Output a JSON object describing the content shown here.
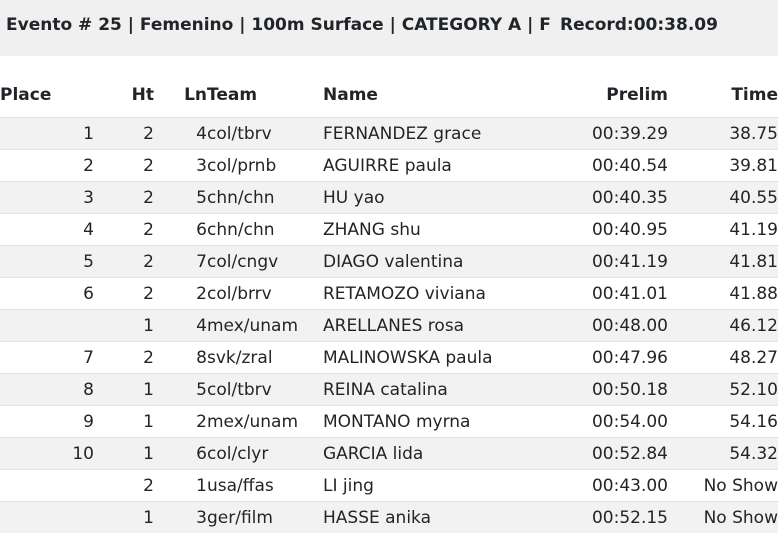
{
  "header": {
    "title": "Evento # 25 | Femenino | 100m Surface | CATEGORY A | F",
    "record": "Record:00:38.09"
  },
  "table": {
    "columns": {
      "place": "Place",
      "ht": "Ht",
      "ln": "Ln",
      "team": "Team",
      "name": "Name",
      "prelim": "Prelim",
      "time": "Time"
    },
    "rows": [
      {
        "place": "1",
        "ht": "2",
        "ln": "4",
        "team": "col/tbrv",
        "name": "FERNANDEZ grace",
        "prelim": "00:39.29",
        "time": "38.75"
      },
      {
        "place": "2",
        "ht": "2",
        "ln": "3",
        "team": "col/prnb",
        "name": "AGUIRRE paula",
        "prelim": "00:40.54",
        "time": "39.81"
      },
      {
        "place": "3",
        "ht": "2",
        "ln": "5",
        "team": "chn/chn",
        "name": "HU yao",
        "prelim": "00:40.35",
        "time": "40.55"
      },
      {
        "place": "4",
        "ht": "2",
        "ln": "6",
        "team": "chn/chn",
        "name": "ZHANG shu",
        "prelim": "00:40.95",
        "time": "41.19"
      },
      {
        "place": "5",
        "ht": "2",
        "ln": "7",
        "team": "col/cngv",
        "name": "DIAGO valentina",
        "prelim": "00:41.19",
        "time": "41.81"
      },
      {
        "place": "6",
        "ht": "2",
        "ln": "2",
        "team": "col/brrv",
        "name": "RETAMOZO viviana",
        "prelim": "00:41.01",
        "time": "41.88"
      },
      {
        "place": "",
        "ht": "1",
        "ln": "4",
        "team": "mex/unam",
        "name": "ARELLANES rosa",
        "prelim": "00:48.00",
        "time": "46.12"
      },
      {
        "place": "7",
        "ht": "2",
        "ln": "8",
        "team": "svk/zral",
        "name": "MALINOWSKA paula",
        "prelim": "00:47.96",
        "time": "48.27"
      },
      {
        "place": "8",
        "ht": "1",
        "ln": "5",
        "team": "col/tbrv",
        "name": "REINA catalina",
        "prelim": "00:50.18",
        "time": "52.10"
      },
      {
        "place": "9",
        "ht": "1",
        "ln": "2",
        "team": "mex/unam",
        "name": "MONTANO myrna",
        "prelim": "00:54.00",
        "time": "54.16"
      },
      {
        "place": "10",
        "ht": "1",
        "ln": "6",
        "team": "col/clyr",
        "name": "GARCIA lida",
        "prelim": "00:52.84",
        "time": "54.32"
      },
      {
        "place": "",
        "ht": "2",
        "ln": "1",
        "team": "usa/ffas",
        "name": "LI jing",
        "prelim": "00:43.00",
        "time": "No Show"
      },
      {
        "place": "",
        "ht": "1",
        "ln": "3",
        "team": "ger/film",
        "name": "HASSE anika",
        "prelim": "00:52.15",
        "time": "No Show"
      }
    ]
  }
}
